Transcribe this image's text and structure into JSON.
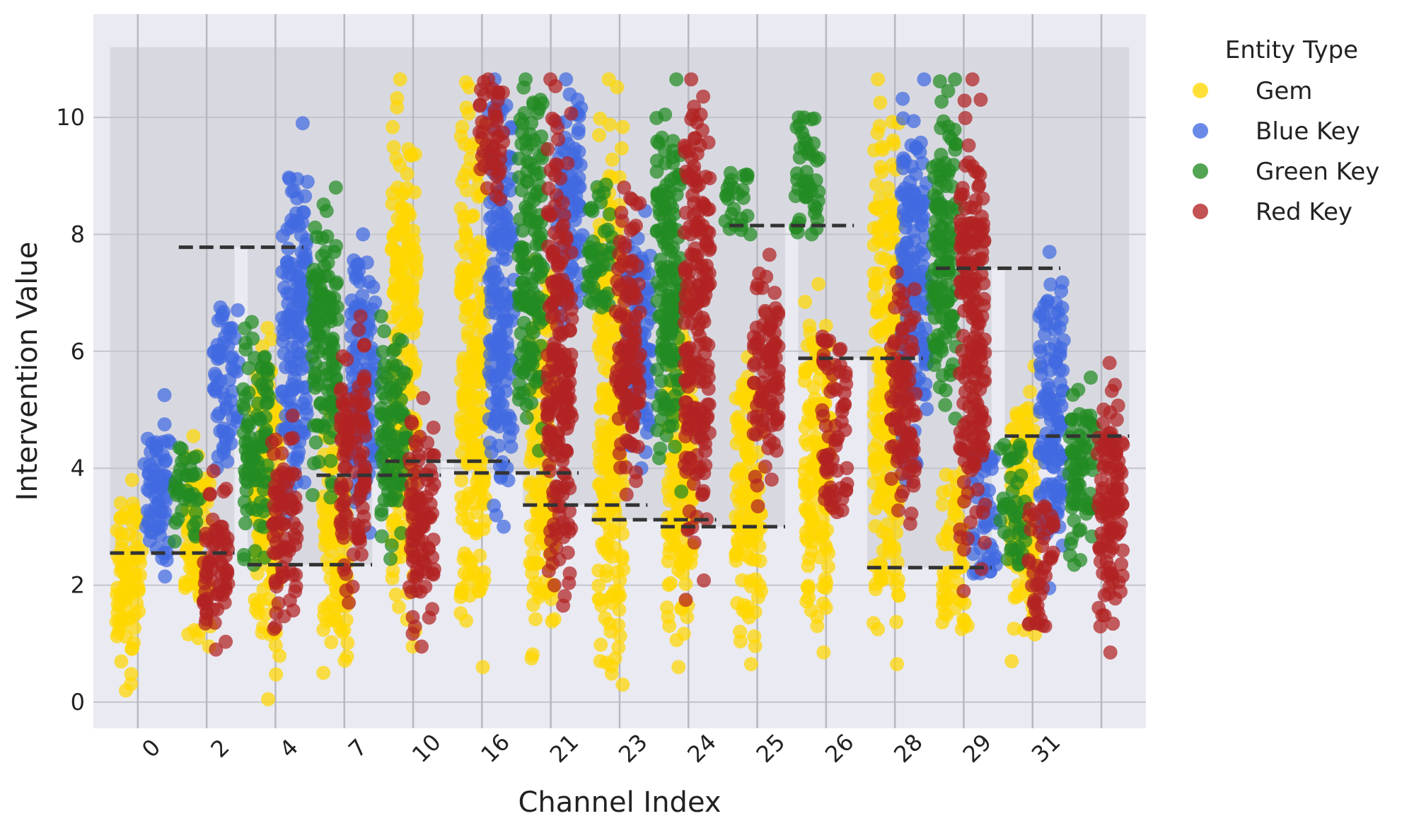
{
  "chart_data": {
    "type": "scatter",
    "subtype": "strip-plot-with-baseline",
    "xlabel": "Channel Index",
    "ylabel": "Intervention Value",
    "ylim": [
      -0.5,
      11.7
    ],
    "yticks": [
      0,
      2,
      4,
      6,
      8,
      10
    ],
    "grid": true,
    "legend": {
      "title": "Entity Type",
      "placement": "outside-right-top"
    },
    "categories": [
      "0",
      "2",
      "4",
      "7",
      "10",
      "16",
      "21",
      "23",
      "24",
      "25",
      "26",
      "28",
      "29",
      "31"
    ],
    "background_max": 11.2,
    "baseline": [
      2.55,
      7.78,
      2.35,
      3.88,
      4.12,
      3.92,
      3.37,
      3.12,
      3.0,
      8.15,
      5.88,
      2.3,
      7.42,
      4.55
    ],
    "series": [
      {
        "name": "Gem",
        "color": "#FFD700",
        "ranges": [
          [
            0.2,
            3.8
          ],
          [
            0.95,
            4.55
          ],
          [
            0.05,
            6.4
          ],
          [
            0.5,
            4.95
          ],
          [
            0.95,
            10.65
          ],
          [
            0.6,
            10.6
          ],
          [
            0.75,
            7.55
          ],
          [
            0.3,
            10.65
          ],
          [
            0.6,
            7.0
          ],
          [
            0.65,
            5.9
          ],
          [
            0.85,
            7.15
          ],
          [
            0.65,
            10.65
          ],
          [
            1.25,
            3.95
          ],
          [
            0.7,
            5.75
          ]
        ]
      },
      {
        "name": "Blue Key",
        "color": "#4169E1",
        "ranges": [
          [
            2.15,
            5.25
          ],
          [
            4.0,
            6.75
          ],
          [
            3.15,
            9.9
          ],
          [
            2.9,
            8.0
          ],
          [
            null,
            null
          ],
          [
            3.0,
            10.65
          ],
          [
            6.5,
            10.65
          ],
          [
            4.0,
            8.4
          ],
          [
            null,
            null
          ],
          [
            null,
            null
          ],
          [
            null,
            null
          ],
          [
            3.8,
            10.65
          ],
          [
            2.2,
            4.25
          ],
          [
            1.95,
            7.7
          ]
        ]
      },
      {
        "name": "Green Key",
        "color": "#228B22",
        "ranges": [
          [
            2.75,
            4.35
          ],
          [
            2.35,
            6.5
          ],
          [
            3.5,
            8.8
          ],
          [
            2.45,
            6.6
          ],
          [
            null,
            null
          ],
          [
            4.3,
            10.65
          ],
          [
            6.75,
            8.85
          ],
          [
            3.6,
            10.65
          ],
          [
            8.0,
            9.05
          ],
          [
            8.0,
            10.0
          ],
          [
            null,
            null
          ],
          [
            4.85,
            10.65
          ],
          [
            2.35,
            4.4
          ],
          [
            2.35,
            5.55
          ]
        ]
      },
      {
        "name": "Red Key",
        "color": "#B22222",
        "ranges": [
          [
            0.9,
            3.95
          ],
          [
            1.25,
            4.9
          ],
          [
            1.7,
            6.6
          ],
          [
            0.95,
            5.2
          ],
          [
            8.6,
            10.65
          ],
          [
            1.65,
            10.65
          ],
          [
            3.55,
            8.8
          ],
          [
            1.75,
            10.65
          ],
          [
            3.35,
            7.65
          ],
          [
            3.25,
            6.25
          ],
          [
            3.05,
            7.35
          ],
          [
            1.9,
            10.65
          ],
          [
            1.3,
            3.35
          ],
          [
            0.85,
            5.8
          ]
        ]
      }
    ]
  }
}
